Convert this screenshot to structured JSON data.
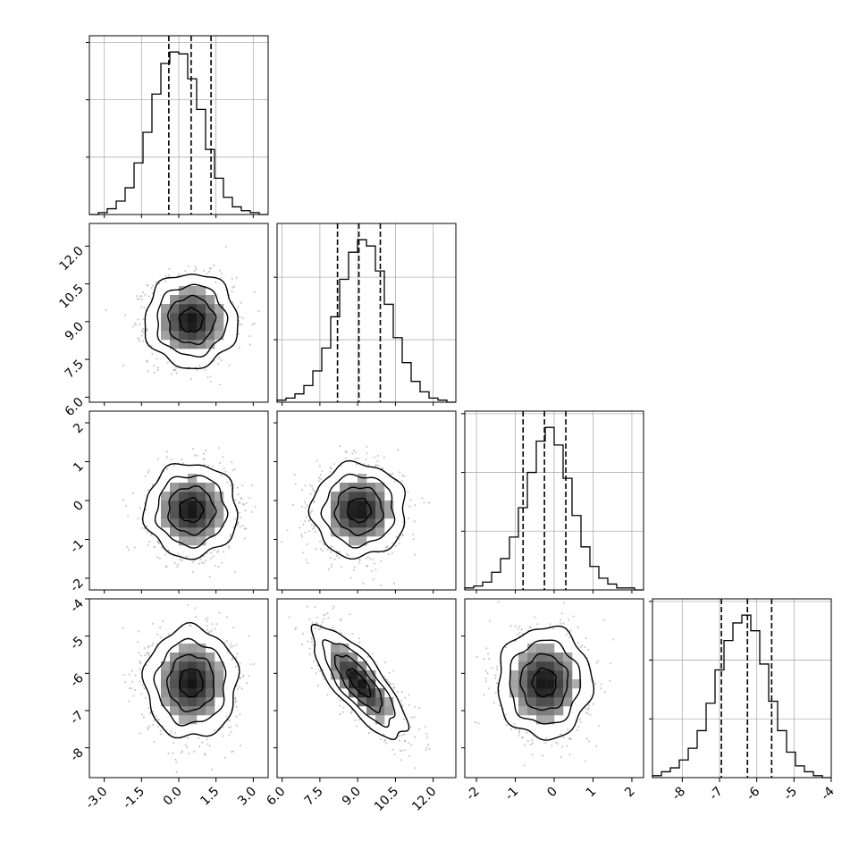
{
  "chart_data": {
    "type": "corner",
    "colors": {
      "ink": "#000000",
      "grid": "#b0b0b0",
      "points": "#9a9a9a"
    },
    "parameters": [
      {
        "range": [
          -3.6,
          3.6
        ],
        "ticks": [
          "-3.0",
          "-1.5",
          "0.0",
          "1.5",
          "3.0"
        ],
        "tick_values": [
          -3.0,
          -1.5,
          0.0,
          1.5,
          3.0
        ]
      },
      {
        "range": [
          5.8,
          12.9
        ],
        "ticks": [
          "6.0",
          "7.5",
          "9.0",
          "10.5",
          "12.0"
        ],
        "tick_values": [
          6.0,
          7.5,
          9.0,
          10.5,
          12.0
        ]
      },
      {
        "range": [
          -2.3,
          2.3
        ],
        "ticks": [
          "-2",
          "-1",
          "0",
          "1",
          "2"
        ],
        "tick_values": [
          -2,
          -1,
          0,
          1,
          2
        ]
      },
      {
        "range": [
          -8.8,
          -4.0
        ],
        "ticks": [
          "-8",
          "-7",
          "-6",
          "-5",
          "-4"
        ],
        "tick_values": [
          -8,
          -7,
          -6,
          -5,
          -4
        ]
      }
    ],
    "histograms": [
      {
        "bin_edges": [
          -3.6,
          -3.24,
          -2.88,
          -2.52,
          -2.16,
          -1.8,
          -1.44,
          -1.08,
          -0.72,
          -0.36,
          0.0,
          0.36,
          0.72,
          1.08,
          1.44,
          1.8,
          2.16,
          2.52,
          2.88,
          3.24,
          3.6
        ],
        "counts": [
          0,
          1,
          3,
          7,
          14,
          27,
          43,
          63,
          79,
          85,
          84,
          71,
          55,
          34,
          19,
          9,
          4,
          2,
          1,
          0
        ],
        "quantiles": [
          -0.4,
          0.5,
          1.3
        ]
      },
      {
        "bin_edges": [
          5.8,
          6.155,
          6.51,
          6.865,
          7.22,
          7.575,
          7.93,
          8.285,
          8.64,
          8.995,
          9.35,
          9.705,
          10.06,
          10.415,
          10.77,
          11.125,
          11.48,
          11.835,
          12.19,
          12.545,
          12.9
        ],
        "counts": [
          1,
          2,
          4,
          8,
          15,
          26,
          41,
          59,
          72,
          78,
          75,
          63,
          47,
          31,
          19,
          10,
          5,
          2,
          1,
          0
        ],
        "quantiles": [
          8.2,
          9.05,
          9.9
        ]
      },
      {
        "bin_edges": [
          -2.3,
          -2.07,
          -1.84,
          -1.61,
          -1.38,
          -1.15,
          -0.92,
          -0.69,
          -0.46,
          -0.23,
          0.0,
          0.23,
          0.46,
          0.69,
          0.92,
          1.15,
          1.38,
          1.61,
          1.84,
          2.07,
          2.3
        ],
        "counts": [
          1,
          2,
          4,
          9,
          16,
          27,
          42,
          60,
          76,
          83,
          74,
          57,
          38,
          22,
          12,
          6,
          3,
          1,
          1,
          0
        ],
        "quantiles": [
          -0.8,
          -0.25,
          0.3
        ]
      },
      {
        "bin_edges": [
          -8.8,
          -8.56,
          -8.32,
          -8.08,
          -7.84,
          -7.6,
          -7.36,
          -7.12,
          -6.88,
          -6.64,
          -6.4,
          -6.16,
          -5.92,
          -5.68,
          -5.44,
          -5.2,
          -4.96,
          -4.72,
          -4.48,
          -4.24,
          -4.0
        ],
        "counts": [
          1,
          3,
          5,
          9,
          15,
          24,
          38,
          55,
          70,
          79,
          83,
          75,
          58,
          39,
          24,
          13,
          6,
          3,
          1,
          0
        ],
        "quantiles": [
          -6.95,
          -6.25,
          -5.6
        ]
      }
    ],
    "pairs": [
      {
        "row": 1,
        "col": 0,
        "mean": [
          0.5,
          9.05
        ],
        "sigma": [
          0.85,
          0.85
        ],
        "rho": 0.0
      },
      {
        "row": 2,
        "col": 0,
        "mean": [
          0.5,
          -0.25
        ],
        "sigma": [
          0.85,
          0.55
        ],
        "rho": 0.0
      },
      {
        "row": 2,
        "col": 1,
        "mean": [
          9.05,
          -0.25
        ],
        "sigma": [
          0.85,
          0.55
        ],
        "rho": 0.0
      },
      {
        "row": 3,
        "col": 0,
        "mean": [
          0.5,
          -6.25
        ],
        "sigma": [
          0.85,
          0.68
        ],
        "rho": 0.0
      },
      {
        "row": 3,
        "col": 1,
        "mean": [
          9.05,
          -6.25
        ],
        "sigma": [
          0.85,
          0.68
        ],
        "rho": -0.78
      },
      {
        "row": 3,
        "col": 2,
        "mean": [
          -0.25,
          -6.25
        ],
        "sigma": [
          0.55,
          0.68
        ],
        "rho": 0.0
      }
    ],
    "contour_levels_sigma": [
      0.5,
      1.0,
      1.5,
      2.0
    ],
    "grid": true
  }
}
